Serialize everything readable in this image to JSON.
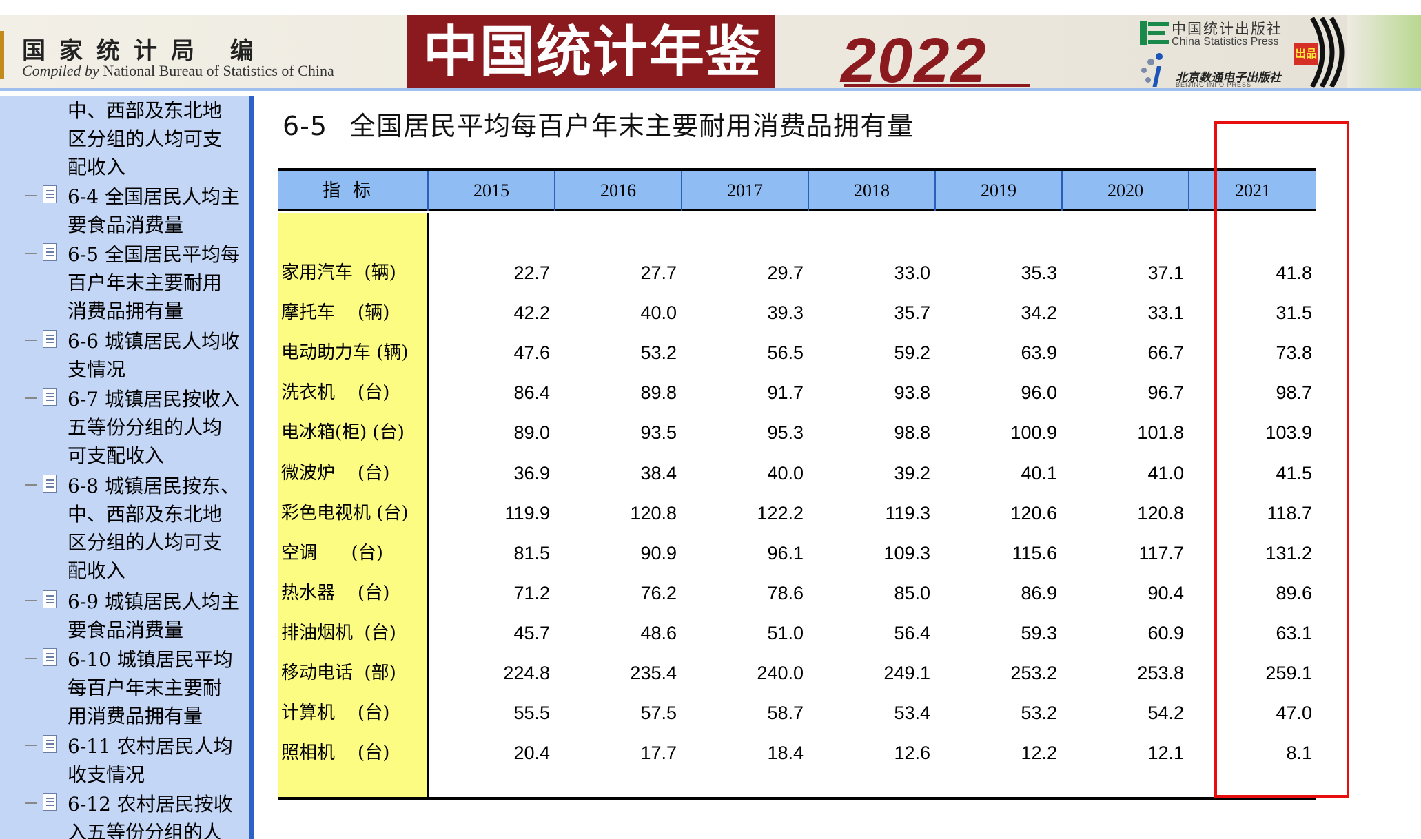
{
  "banner": {
    "editor": "国家统计局 编",
    "compiled_prefix": "Compiled by",
    "compiled_suffix": " National Bureau of Statistics of China",
    "title": "中国统计年鉴",
    "year": "2022",
    "publisher_cn": "中国统计出版社",
    "publisher_en": "China Statistics Press",
    "press_cn": "北京数通电子出版社",
    "press_en": "BEIJING INFO PRESS",
    "badge": "出品"
  },
  "sidebar": {
    "items": [
      {
        "label": "中、西部及东北地\n区分组的人均可支\n配收入",
        "has_icon": false
      },
      {
        "label": "6-4 全国居民人均主\n要食品消费量",
        "has_icon": true
      },
      {
        "label": "6-5 全国居民平均每\n百户年末主要耐用\n消费品拥有量",
        "has_icon": true
      },
      {
        "label": "6-6 城镇居民人均收\n支情况",
        "has_icon": true
      },
      {
        "label": "6-7 城镇居民按收入\n五等份分组的人均\n可支配收入",
        "has_icon": true
      },
      {
        "label": "6-8 城镇居民按东、\n中、西部及东北地\n区分组的人均可支\n配收入",
        "has_icon": true
      },
      {
        "label": "6-9 城镇居民人均主\n要食品消费量",
        "has_icon": true
      },
      {
        "label": "6-10 城镇居民平均\n每百户年末主要耐\n用消费品拥有量",
        "has_icon": true
      },
      {
        "label": "6-11 农村居民人均\n收支情况",
        "has_icon": true
      },
      {
        "label": "6-12 农村居民按收\n入五等份分组的人",
        "has_icon": true
      }
    ]
  },
  "page": {
    "table_number": "6-5",
    "table_title": "全国居民平均每百户年末主要耐用消费品拥有量"
  },
  "table": {
    "indicator_header": "指标",
    "years": [
      "2015",
      "2016",
      "2017",
      "2018",
      "2019",
      "2020",
      "2021"
    ],
    "rows": [
      {
        "label": "家用汽车  (辆)",
        "values": [
          "22.7",
          "27.7",
          "29.7",
          "33.0",
          "35.3",
          "37.1",
          "41.8"
        ]
      },
      {
        "label": "摩托车    (辆)",
        "values": [
          "42.2",
          "40.0",
          "39.3",
          "35.7",
          "34.2",
          "33.1",
          "31.5"
        ]
      },
      {
        "label": "电动助力车 (辆)",
        "values": [
          "47.6",
          "53.2",
          "56.5",
          "59.2",
          "63.9",
          "66.7",
          "73.8"
        ]
      },
      {
        "label": "洗衣机    (台)",
        "values": [
          "86.4",
          "89.8",
          "91.7",
          "93.8",
          "96.0",
          "96.7",
          "98.7"
        ]
      },
      {
        "label": "电冰箱(柜) (台)",
        "values": [
          "89.0",
          "93.5",
          "95.3",
          "98.8",
          "100.9",
          "101.8",
          "103.9"
        ]
      },
      {
        "label": "微波炉    (台)",
        "values": [
          "36.9",
          "38.4",
          "40.0",
          "39.2",
          "40.1",
          "41.0",
          "41.5"
        ]
      },
      {
        "label": "彩色电视机 (台)",
        "values": [
          "119.9",
          "120.8",
          "122.2",
          "119.3",
          "120.6",
          "120.8",
          "118.7"
        ]
      },
      {
        "label": "空调      (台)",
        "values": [
          "81.5",
          "90.9",
          "96.1",
          "109.3",
          "115.6",
          "117.7",
          "131.2"
        ]
      },
      {
        "label": "热水器    (台)",
        "values": [
          "71.2",
          "76.2",
          "78.6",
          "85.0",
          "86.9",
          "90.4",
          "89.6"
        ]
      },
      {
        "label": "排油烟机  (台)",
        "values": [
          "45.7",
          "48.6",
          "51.0",
          "56.4",
          "59.3",
          "60.9",
          "63.1"
        ]
      },
      {
        "label": "移动电话  (部)",
        "values": [
          "224.8",
          "235.4",
          "240.0",
          "249.1",
          "253.2",
          "253.8",
          "259.1"
        ]
      },
      {
        "label": "计算机    (台)",
        "values": [
          "55.5",
          "57.5",
          "58.7",
          "53.4",
          "53.2",
          "54.2",
          "47.0"
        ]
      },
      {
        "label": "照相机    (台)",
        "values": [
          "20.4",
          "17.7",
          "18.4",
          "12.6",
          "12.2",
          "12.1",
          "8.1"
        ]
      }
    ]
  },
  "colors": {
    "header_blue": "#8fbcf2",
    "label_yellow": "#fcfc83",
    "sidebar_blue": "#c3d6f6",
    "highlight_red": "#e80e0e",
    "title_red": "#8b1a1f"
  }
}
